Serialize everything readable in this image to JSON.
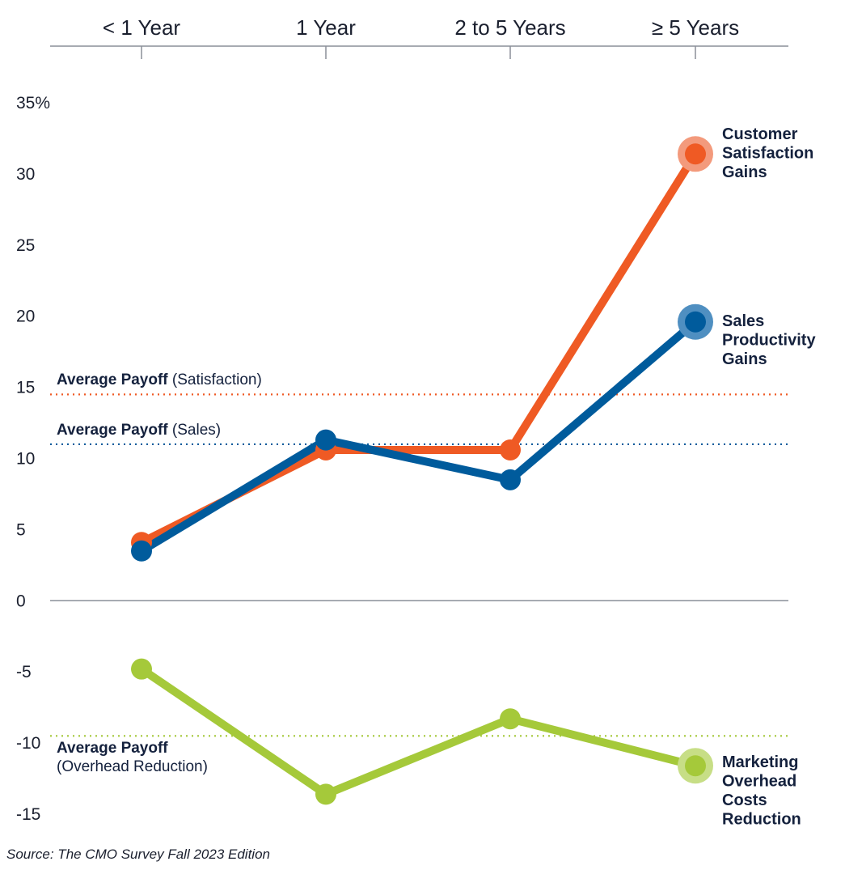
{
  "chart_data": {
    "type": "line",
    "categories": [
      "< 1 Year",
      "1 Year",
      "2 to 5 Years",
      "≥ 5 Years"
    ],
    "ylim": [
      -15,
      35
    ],
    "y_ticks": [
      {
        "value": 35,
        "label": "35%"
      },
      {
        "value": 30,
        "label": "30"
      },
      {
        "value": 25,
        "label": "25"
      },
      {
        "value": 20,
        "label": "20"
      },
      {
        "value": 15,
        "label": "15"
      },
      {
        "value": 10,
        "label": "10"
      },
      {
        "value": 5,
        "label": "5"
      },
      {
        "value": 0,
        "label": "0"
      },
      {
        "value": -5,
        "label": "-5"
      },
      {
        "value": -10,
        "label": "-10"
      },
      {
        "value": -15,
        "label": "-15"
      }
    ],
    "x_axis_position": "top",
    "grid": false,
    "series": [
      {
        "key": "satisfaction",
        "name_lines": [
          "Customer",
          "Satisfaction",
          "Gains"
        ],
        "color": "#ef5a24",
        "halo": "#f39a7c",
        "values": [
          4.1,
          10.6,
          10.6,
          31.4
        ]
      },
      {
        "key": "sales",
        "name_lines": [
          "Sales",
          "Productivity",
          "Gains"
        ],
        "color": "#005b9c",
        "halo": "#4f8fc1",
        "values": [
          3.5,
          11.3,
          8.5,
          19.6
        ]
      },
      {
        "key": "overhead",
        "name_lines": [
          "Marketing",
          "Overhead",
          "Costs",
          "Reduction"
        ],
        "color": "#a5c93a",
        "halo": "#c7de86",
        "values": [
          -4.8,
          -13.6,
          -8.3,
          -11.6
        ]
      }
    ],
    "averages": [
      {
        "key": "satisfaction",
        "value": 14.5,
        "color": "#ef5a24",
        "label_bold": "Average Payoff",
        "label_normal": "(Satisfaction)"
      },
      {
        "key": "sales",
        "value": 11.0,
        "color": "#005b9c",
        "label_bold": "Average Payoff",
        "label_normal": "(Sales)"
      },
      {
        "key": "overhead",
        "value": -9.5,
        "color": "#a5c93a",
        "label_bold": "Average Payoff",
        "label_normal": "(Overhead Reduction)"
      }
    ]
  },
  "source": "Source: The CMO Survey Fall 2023 Edition"
}
